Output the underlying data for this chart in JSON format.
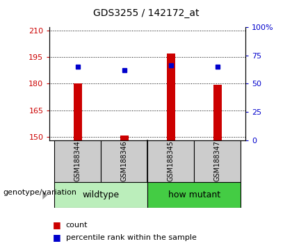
{
  "title": "GDS3255 / 142172_at",
  "samples": [
    "GSM188344",
    "GSM188346",
    "GSM188345",
    "GSM188347"
  ],
  "count_values": [
    180.0,
    150.5,
    197.0,
    179.5
  ],
  "percentile_values": [
    65,
    62,
    66,
    65
  ],
  "ylim_left": [
    148,
    212
  ],
  "ylim_right": [
    0,
    100
  ],
  "left_ticks": [
    150,
    165,
    180,
    195,
    210
  ],
  "right_ticks": [
    0,
    25,
    50,
    75,
    100
  ],
  "left_tick_labels": [
    "150",
    "165",
    "180",
    "195",
    "210"
  ],
  "right_tick_labels": [
    "0",
    "25",
    "50",
    "75",
    "100%"
  ],
  "left_color": "#CC0000",
  "right_color": "#0000CC",
  "bar_color": "#CC0000",
  "dot_color": "#0000CC",
  "grid_color": "#000000",
  "sample_box_color": "#CCCCCC",
  "wildtype_color": "#BBEEBB",
  "howmutant_color": "#44CC44",
  "genotype_label": "genotype/variation",
  "legend_count": "count",
  "legend_percentile": "percentile rank within the sample",
  "title_fontsize": 10,
  "tick_fontsize": 8,
  "label_fontsize": 8,
  "sample_fontsize": 7,
  "group_fontsize": 9
}
